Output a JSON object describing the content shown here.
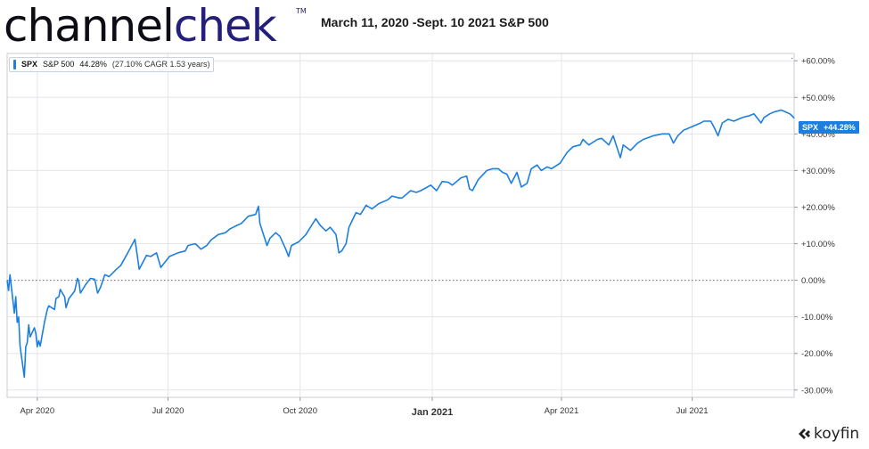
{
  "header": {
    "logo_part1": "channel",
    "logo_part2": "chek",
    "trademark": "TM",
    "title": "March 11, 2020 -Sept. 10 2021 S&P 500"
  },
  "legend": {
    "ticker": "SPX",
    "name": "S&P 500",
    "return": "44.28%",
    "cagr_text": "(27.10% CAGR 1.53 years)"
  },
  "last_value_badge": {
    "ticker": "SPX",
    "value": "+44.28%"
  },
  "brand": {
    "name": "koyfin"
  },
  "colors": {
    "line": "#1c7fe0",
    "grid": "#e3e6ea",
    "axis_text": "#333333",
    "badge_bg": "#1c7fe0"
  },
  "chart_data": {
    "type": "line",
    "title": "March 11, 2020 -Sept. 10 2021 S&P 500",
    "xlabel": "",
    "ylabel": "",
    "x_range": [
      "2020-03-11",
      "2021-09-10"
    ],
    "ylim": [
      -32,
      62
    ],
    "y_ticks": [
      60,
      50,
      40,
      30,
      20,
      10,
      0,
      -10,
      -20,
      -30
    ],
    "y_tick_labels": [
      "+60.00%",
      "+50.00%",
      "+40.00%",
      "+30.00%",
      "+20.00%",
      "+10.00%",
      "0.00%",
      "-10.00%",
      "-20.00%",
      "-30.00%"
    ],
    "x_ticks": [
      {
        "date": "2020-04-01",
        "label": "Apr 2020",
        "bold": false
      },
      {
        "date": "2020-07-01",
        "label": "Jul 2020",
        "bold": false
      },
      {
        "date": "2020-10-01",
        "label": "Oct 2020",
        "bold": false
      },
      {
        "date": "2021-01-01",
        "label": "Jan 2021",
        "bold": true
      },
      {
        "date": "2021-04-01",
        "label": "Apr 2021",
        "bold": false
      },
      {
        "date": "2021-07-01",
        "label": "Jul 2021",
        "bold": false
      }
    ],
    "zero_line": "dotted",
    "grid": true,
    "legend_position": "top-left",
    "series": [
      {
        "name": "SPX S&P 500",
        "points": [
          [
            "2020-03-11",
            0
          ],
          [
            "2020-03-12",
            -2.8
          ],
          [
            "2020-03-13",
            1.5
          ],
          [
            "2020-03-16",
            -9
          ],
          [
            "2020-03-17",
            -4.5
          ],
          [
            "2020-03-18",
            -11.5
          ],
          [
            "2020-03-19",
            -10
          ],
          [
            "2020-03-20",
            -18
          ],
          [
            "2020-03-23",
            -26.5
          ],
          [
            "2020-03-24",
            -18.2
          ],
          [
            "2020-03-25",
            -17
          ],
          [
            "2020-03-26",
            -12.2
          ],
          [
            "2020-03-27",
            -15.5
          ],
          [
            "2020-03-30",
            -13
          ],
          [
            "2020-03-31",
            -14.5
          ],
          [
            "2020-04-01",
            -18.2
          ],
          [
            "2020-04-02",
            -16.5
          ],
          [
            "2020-04-03",
            -18
          ],
          [
            "2020-04-06",
            -11.5
          ],
          [
            "2020-04-08",
            -8
          ],
          [
            "2020-04-09",
            -7
          ],
          [
            "2020-04-13",
            -8
          ],
          [
            "2020-04-14",
            -5
          ],
          [
            "2020-04-16",
            -4.5
          ],
          [
            "2020-04-17",
            -2.5
          ],
          [
            "2020-04-20",
            -4.5
          ],
          [
            "2020-04-21",
            -7.5
          ],
          [
            "2020-04-23",
            -5
          ],
          [
            "2020-04-27",
            -3
          ],
          [
            "2020-04-29",
            0.5
          ],
          [
            "2020-04-30",
            -0.5
          ],
          [
            "2020-05-01",
            -3.5
          ],
          [
            "2020-05-05",
            -1
          ],
          [
            "2020-05-08",
            0.5
          ],
          [
            "2020-05-11",
            0.3
          ],
          [
            "2020-05-13",
            -3.5
          ],
          [
            "2020-05-15",
            -2
          ],
          [
            "2020-05-18",
            1.5
          ],
          [
            "2020-05-21",
            1
          ],
          [
            "2020-05-26",
            3
          ],
          [
            "2020-05-29",
            4
          ],
          [
            "2020-06-03",
            7.5
          ],
          [
            "2020-06-08",
            11.2
          ],
          [
            "2020-06-11",
            3
          ],
          [
            "2020-06-16",
            6.8
          ],
          [
            "2020-06-19",
            6.5
          ],
          [
            "2020-06-23",
            7.5
          ],
          [
            "2020-06-26",
            3.5
          ],
          [
            "2020-06-30",
            5.5
          ],
          [
            "2020-07-02",
            6.5
          ],
          [
            "2020-07-08",
            7.5
          ],
          [
            "2020-07-13",
            8
          ],
          [
            "2020-07-15",
            9.5
          ],
          [
            "2020-07-20",
            10
          ],
          [
            "2020-07-24",
            8.5
          ],
          [
            "2020-07-28",
            9.5
          ],
          [
            "2020-07-31",
            11
          ],
          [
            "2020-08-05",
            12.5
          ],
          [
            "2020-08-10",
            13
          ],
          [
            "2020-08-13",
            14
          ],
          [
            "2020-08-18",
            15
          ],
          [
            "2020-08-21",
            15.5
          ],
          [
            "2020-08-26",
            17.5
          ],
          [
            "2020-08-31",
            18
          ],
          [
            "2020-09-02",
            20.2
          ],
          [
            "2020-09-03",
            15.5
          ],
          [
            "2020-09-08",
            9.5
          ],
          [
            "2020-09-10",
            11.5
          ],
          [
            "2020-09-14",
            13
          ],
          [
            "2020-09-17",
            12
          ],
          [
            "2020-09-21",
            8.5
          ],
          [
            "2020-09-23",
            6.5
          ],
          [
            "2020-09-25",
            9.5
          ],
          [
            "2020-09-30",
            10.5
          ],
          [
            "2020-10-05",
            12.5
          ],
          [
            "2020-10-09",
            15
          ],
          [
            "2020-10-12",
            16.8
          ],
          [
            "2020-10-15",
            15
          ],
          [
            "2020-10-19",
            13.5
          ],
          [
            "2020-10-22",
            14.5
          ],
          [
            "2020-10-26",
            12.5
          ],
          [
            "2020-10-28",
            7.5
          ],
          [
            "2020-10-30",
            8
          ],
          [
            "2020-11-02",
            10
          ],
          [
            "2020-11-04",
            14.5
          ],
          [
            "2020-11-09",
            18.5
          ],
          [
            "2020-11-12",
            18
          ],
          [
            "2020-11-16",
            20.5
          ],
          [
            "2020-11-20",
            19.5
          ],
          [
            "2020-11-25",
            21
          ],
          [
            "2020-12-01",
            22
          ],
          [
            "2020-12-04",
            23
          ],
          [
            "2020-12-09",
            22.5
          ],
          [
            "2020-12-11",
            22.5
          ],
          [
            "2020-12-17",
            24.5
          ],
          [
            "2020-12-21",
            24
          ],
          [
            "2020-12-24",
            24.5
          ],
          [
            "2020-12-31",
            26
          ],
          [
            "2021-01-04",
            24.5
          ],
          [
            "2021-01-08",
            27
          ],
          [
            "2021-01-12",
            26.8
          ],
          [
            "2021-01-15",
            26
          ],
          [
            "2021-01-21",
            28
          ],
          [
            "2021-01-25",
            28.5
          ],
          [
            "2021-01-27",
            25
          ],
          [
            "2021-01-29",
            24.5
          ],
          [
            "2021-02-02",
            27.5
          ],
          [
            "2021-02-08",
            30
          ],
          [
            "2021-02-12",
            30.5
          ],
          [
            "2021-02-16",
            30.5
          ],
          [
            "2021-02-19",
            29.5
          ],
          [
            "2021-02-22",
            29
          ],
          [
            "2021-02-25",
            26.5
          ],
          [
            "2021-03-01",
            29.5
          ],
          [
            "2021-03-04",
            25.5
          ],
          [
            "2021-03-08",
            26.5
          ],
          [
            "2021-03-11",
            30.5
          ],
          [
            "2021-03-15",
            31.5
          ],
          [
            "2021-03-18",
            30
          ],
          [
            "2021-03-22",
            31
          ],
          [
            "2021-03-25",
            30.5
          ],
          [
            "2021-03-31",
            32
          ],
          [
            "2021-04-05",
            35
          ],
          [
            "2021-04-09",
            36.5
          ],
          [
            "2021-04-14",
            37
          ],
          [
            "2021-04-16",
            38.5
          ],
          [
            "2021-04-20",
            37
          ],
          [
            "2021-04-26",
            38.5
          ],
          [
            "2021-04-29",
            38.8
          ],
          [
            "2021-05-04",
            37
          ],
          [
            "2021-05-07",
            39.5
          ],
          [
            "2021-05-12",
            33.5
          ],
          [
            "2021-05-14",
            37
          ],
          [
            "2021-05-19",
            35.5
          ],
          [
            "2021-05-24",
            37.5
          ],
          [
            "2021-05-28",
            38.5
          ],
          [
            "2021-06-04",
            39.5
          ],
          [
            "2021-06-10",
            40
          ],
          [
            "2021-06-15",
            40
          ],
          [
            "2021-06-18",
            37.5
          ],
          [
            "2021-06-21",
            39.5
          ],
          [
            "2021-06-25",
            41
          ],
          [
            "2021-07-01",
            42
          ],
          [
            "2021-07-07",
            43
          ],
          [
            "2021-07-09",
            43.5
          ],
          [
            "2021-07-14",
            43.5
          ],
          [
            "2021-07-16",
            42
          ],
          [
            "2021-07-19",
            39.5
          ],
          [
            "2021-07-22",
            43
          ],
          [
            "2021-07-26",
            44
          ],
          [
            "2021-07-30",
            43.5
          ],
          [
            "2021-08-05",
            44.5
          ],
          [
            "2021-08-10",
            45
          ],
          [
            "2021-08-13",
            45.5
          ],
          [
            "2021-08-18",
            43
          ],
          [
            "2021-08-20",
            44.5
          ],
          [
            "2021-08-24",
            45.5
          ],
          [
            "2021-08-27",
            46
          ],
          [
            "2021-09-01",
            46.5
          ],
          [
            "2021-09-03",
            46.2
          ],
          [
            "2021-09-07",
            45.5
          ],
          [
            "2021-09-09",
            44.8
          ],
          [
            "2021-09-10",
            44.28
          ]
        ]
      }
    ]
  }
}
